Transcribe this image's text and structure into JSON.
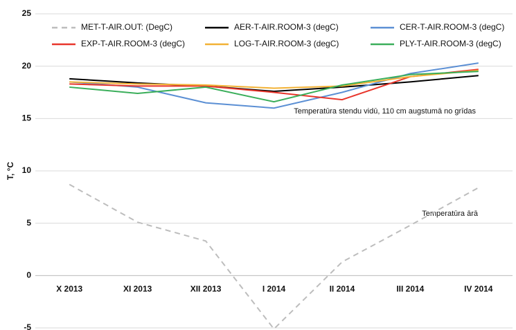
{
  "chart_data": {
    "type": "line",
    "y_label": "T, °C",
    "categories": [
      "X 2013",
      "XI 2013",
      "XII 2013",
      "I 2014",
      "II 2014",
      "III 2014",
      "IV 2014"
    ],
    "series": [
      {
        "name": "MET-T-AIR.OUT: (DegC)",
        "color": "#bdbdbd",
        "dashed": true,
        "values": [
          8.7,
          5.1,
          3.3,
          -5.1,
          1.3,
          4.8,
          8.4
        ]
      },
      {
        "name": "AER-T-AIR.ROOM-3 (degC)",
        "color": "#000000",
        "values": [
          18.8,
          18.4,
          18.1,
          17.6,
          18.0,
          18.5,
          19.1
        ]
      },
      {
        "name": "CER-T-AIR.ROOM-3 (degC)",
        "color": "#5b8fd4",
        "values": [
          18.5,
          18.0,
          16.5,
          16.0,
          17.5,
          19.3,
          20.3
        ]
      },
      {
        "name": "EXP-T-AIR.ROOM-3 (degC)",
        "color": "#e8352b",
        "values": [
          18.3,
          18.1,
          18.1,
          17.5,
          16.8,
          19.0,
          19.7
        ]
      },
      {
        "name": "LOG-T-AIR.ROOM-3 (degC)",
        "color": "#f2b134",
        "values": [
          18.5,
          18.3,
          18.2,
          17.9,
          18.1,
          19.0,
          19.6
        ]
      },
      {
        "name": "PLY-T-AIR.ROOM-3 (degC)",
        "color": "#3aae5a",
        "values": [
          18.0,
          17.4,
          18.0,
          16.6,
          18.2,
          19.2,
          19.5
        ]
      }
    ],
    "annotations": [
      "Temperatūra stendu vidū, 110 cm augstumā no grīdas",
      "Temperatūra ārā"
    ],
    "ylim": [
      -5,
      25
    ],
    "yticks": [
      -5,
      0,
      5,
      10,
      15,
      20,
      25
    ],
    "grid": true,
    "legend": "top"
  }
}
